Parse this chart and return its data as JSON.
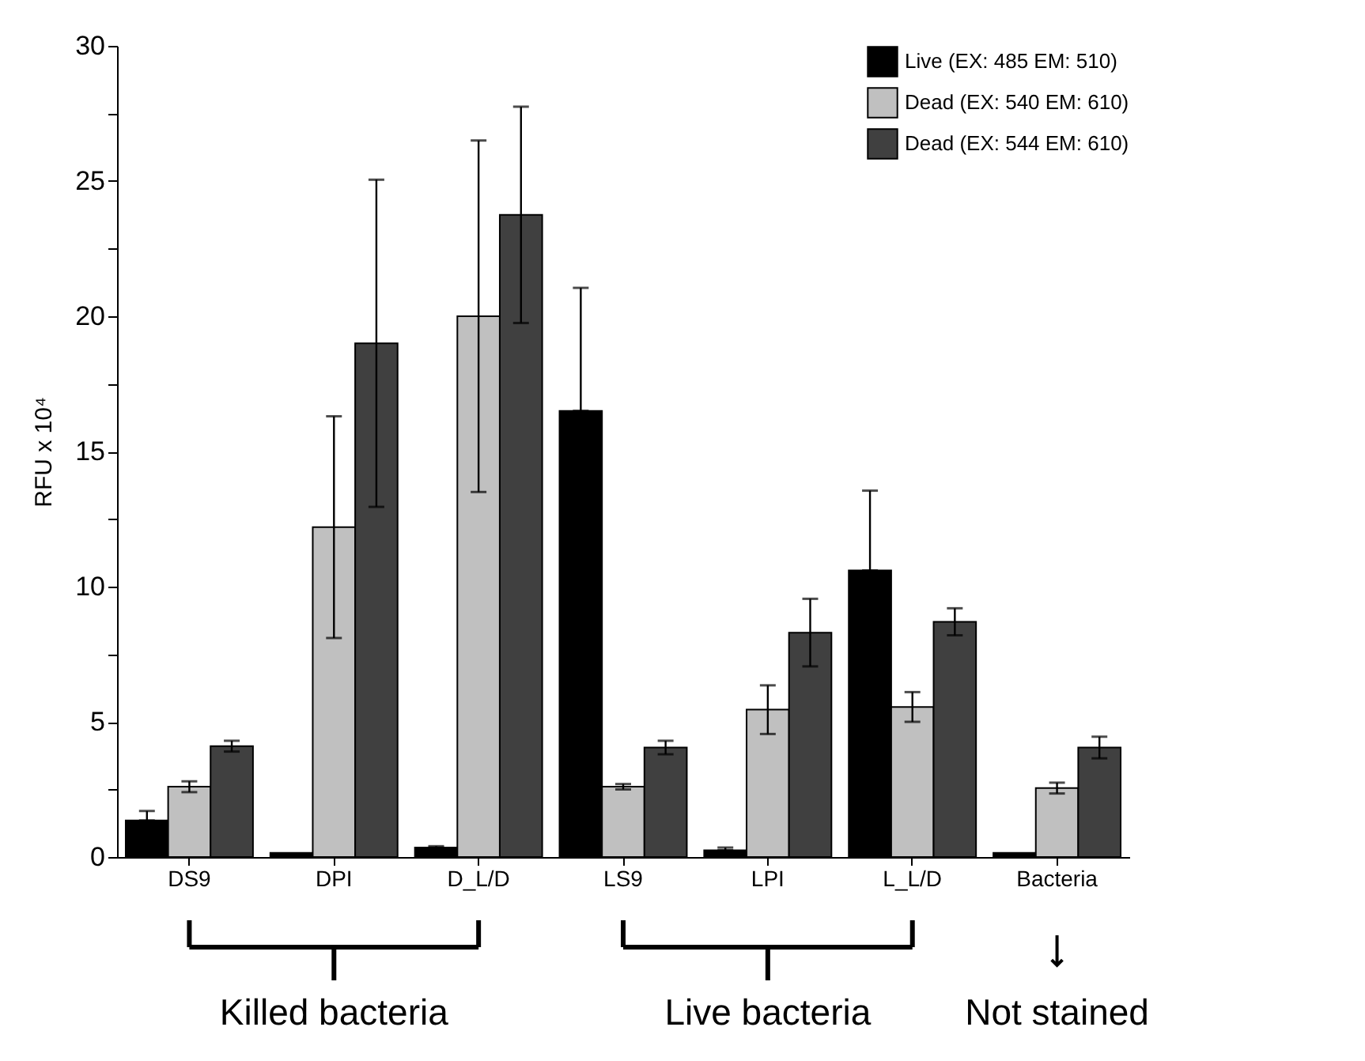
{
  "chart_data": {
    "type": "bar",
    "categories": [
      "DS9",
      "DPI",
      "D_L/D",
      "LS9",
      "LPI",
      "L_L/D",
      "Bacteria"
    ],
    "ylabel": "RFU x 10⁴",
    "ylim": [
      0,
      30
    ],
    "yticks": [
      0,
      {
        "value": 2.5,
        "label": null
      },
      5,
      {
        "value": 7.5,
        "label": null
      },
      10,
      {
        "value": 12.5,
        "label": null
      },
      15,
      {
        "value": 17.5,
        "label": null
      },
      20,
      {
        "value": 22.5,
        "label": null
      },
      25,
      {
        "value": 27.5,
        "label": null
      },
      30
    ],
    "series": [
      {
        "name": "Live (EX: 485 EM: 510)",
        "color": "#000000",
        "values": [
          1.35,
          0.15,
          0.35,
          16.5,
          0.25,
          10.6,
          0.15
        ],
        "errors": [
          [
            1.35,
            1.7
          ],
          null,
          [
            0.35,
            0.4
          ],
          [
            16.5,
            21.05
          ],
          [
            0.25,
            0.35
          ],
          [
            10.6,
            13.55
          ],
          null
        ]
      },
      {
        "name": "Dead (EX: 540 EM: 610)",
        "color": "#c0c0c0",
        "values": [
          2.6,
          12.2,
          20.0,
          2.6,
          5.45,
          5.55,
          2.55
        ],
        "errors": [
          0.2,
          4.1,
          6.5,
          0.1,
          0.9,
          0.55,
          0.2
        ]
      },
      {
        "name": "Dead (EX: 544 EM: 610)",
        "color": "#404040",
        "values": [
          4.1,
          19.0,
          23.75,
          4.05,
          8.3,
          8.7,
          4.05
        ],
        "errors": [
          0.2,
          6.05,
          4.0,
          0.25,
          1.25,
          0.5,
          0.4
        ]
      }
    ],
    "legend": "top right",
    "grid": false,
    "annotations": [
      "Killed bacteria",
      "Live bacteria",
      "Not stained"
    ]
  }
}
